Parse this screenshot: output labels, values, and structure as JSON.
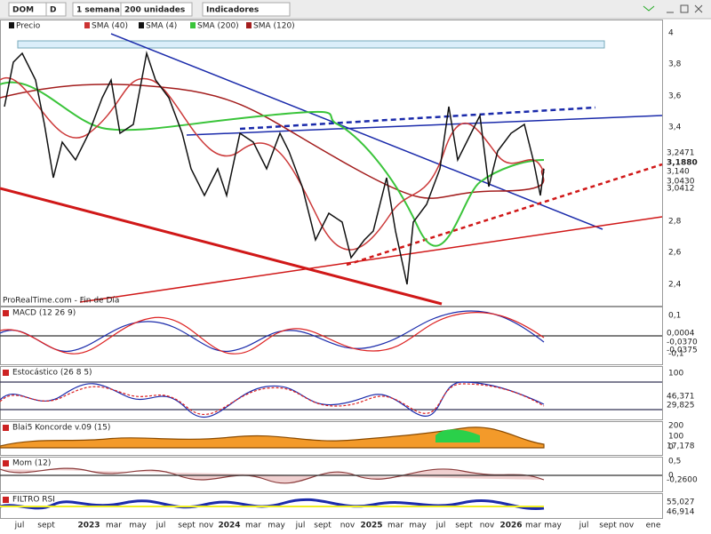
{
  "toolbar": {
    "items": [
      "DOM",
      "D",
      "1 semana",
      "200 unidades",
      "Indicadores"
    ]
  },
  "main": {
    "legend": [
      "Precio",
      "SMA (40)",
      "SMA (4)",
      "SMA (200)",
      "SMA (120)"
    ],
    "axis_labels": [
      "4",
      "3,8",
      "3,6",
      "3,4",
      "2,8",
      "2,6",
      "2,4"
    ],
    "price_tags": [
      "3,2471",
      "3,1880",
      "3,140",
      "3,0430",
      "3,0412"
    ],
    "watermark": "ProRealTime.com - Fin de Día"
  },
  "panels": [
    {
      "title": "MACD (12 26 9)",
      "axis_labels": [
        "0,1",
        "-0,1"
      ],
      "value_tags": [
        "0,0004",
        "-0,0370",
        "-0,0375"
      ]
    },
    {
      "title": "Estocástico (26 8 5)",
      "axis_labels": [
        "100"
      ],
      "value_tags": [
        "46,371",
        "29,825"
      ]
    },
    {
      "title": "Blai5 Koncorde v.09 (15)",
      "axis_labels": [
        "200",
        "100",
        "0"
      ],
      "value_tags": [
        "17,178"
      ]
    },
    {
      "title": "Mom (12)",
      "axis_labels": [
        "0,5",
        "0"
      ],
      "value_tags": [
        "-0,2600"
      ]
    },
    {
      "title": "FILTRO RSI",
      "axis_labels": [],
      "value_tags": [
        "55,027",
        "46,914"
      ]
    }
  ],
  "x_axis": {
    "labels": [
      "jul",
      "sept",
      "2023",
      "mar",
      "may",
      "jul",
      "sept",
      "nov",
      "2024",
      "mar",
      "may",
      "jul",
      "sept",
      "nov",
      "2025",
      "mar",
      "may",
      "jul",
      "sept",
      "nov",
      "2026",
      "mar",
      "may",
      "jul",
      "sept",
      "nov",
      "ene"
    ]
  }
}
